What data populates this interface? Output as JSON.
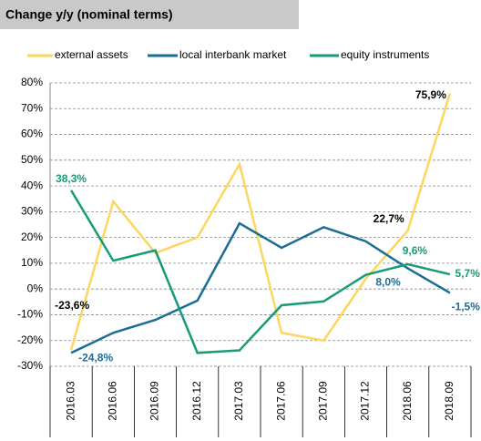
{
  "chart_data": {
    "type": "line",
    "title": "Change y/y (nominal terms)",
    "categories": [
      "2016.03",
      "2016.06",
      "2016.09",
      "2016.12",
      "2017.03",
      "2017.06",
      "2017.09",
      "2017.12",
      "2018.06",
      "2018.09"
    ],
    "series": [
      {
        "name": "external assets",
        "color": "#fcd65e",
        "values": [
          -23.6,
          34,
          14,
          20,
          48.5,
          -17,
          -20,
          4,
          22.7,
          75.9
        ],
        "value_labels": [
          "-23,6%",
          null,
          null,
          null,
          null,
          null,
          null,
          null,
          "22,7%",
          "75,9%"
        ]
      },
      {
        "name": "local interbank market",
        "color": "#1b6d96",
        "values": [
          -24.8,
          -17,
          -12,
          -4.5,
          25.5,
          16,
          24,
          18.5,
          8.0,
          -1.5
        ],
        "value_labels": [
          "-24,8%",
          null,
          null,
          null,
          null,
          null,
          null,
          null,
          "8,0%",
          "-1,5%"
        ]
      },
      {
        "name": "equity instruments",
        "color": "#179b78",
        "values": [
          38.3,
          11,
          15,
          -24.8,
          -23.8,
          -6.3,
          -4.8,
          5.5,
          9.6,
          5.7
        ],
        "value_labels": [
          "38,3%",
          null,
          null,
          null,
          null,
          null,
          null,
          null,
          "9,6%",
          "5,7%"
        ]
      }
    ],
    "ylim": [
      -30,
      80
    ],
    "yticks": [
      {
        "value": -30,
        "label": "-30%"
      },
      {
        "value": -20,
        "label": "-20%"
      },
      {
        "value": -10,
        "label": "-10%"
      },
      {
        "value": 0,
        "label": "0%"
      },
      {
        "value": 10,
        "label": "10%"
      },
      {
        "value": 20,
        "label": "20%"
      },
      {
        "value": 30,
        "label": "30%"
      },
      {
        "value": 40,
        "label": "40%"
      },
      {
        "value": 50,
        "label": "50%"
      },
      {
        "value": 60,
        "label": "60%"
      },
      {
        "value": 70,
        "label": "70%"
      },
      {
        "value": 80,
        "label": "80%"
      }
    ],
    "grid": true,
    "legend": "top"
  }
}
